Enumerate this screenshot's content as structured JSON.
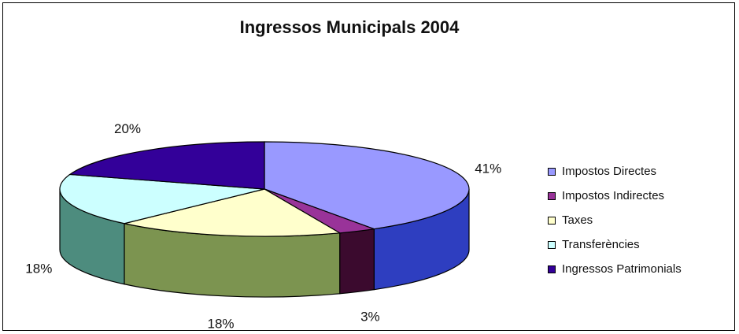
{
  "chart_data": {
    "type": "pie",
    "title": "Ingressos Municipals 2004",
    "slices": [
      {
        "name": "Impostos Directes",
        "value": 41,
        "label": "41%",
        "top_color": "#9999ff",
        "side_color": "#2e3ec0"
      },
      {
        "name": "Impostos Indirectes",
        "value": 3,
        "label": "3%",
        "top_color": "#993399",
        "side_color": "#3b0a2e"
      },
      {
        "name": "Taxes",
        "value": 18,
        "label": "18%",
        "top_color": "#ffffcc",
        "side_color": "#7c9450"
      },
      {
        "name": "Transferències",
        "value": 18,
        "label": "18%",
        "top_color": "#ccffff",
        "side_color": "#4d8c7e"
      },
      {
        "name": "Ingressos Patrimonials",
        "value": 20,
        "label": "20%",
        "top_color": "#330099",
        "side_color": "#1a0066"
      }
    ],
    "legend_position": "right"
  }
}
